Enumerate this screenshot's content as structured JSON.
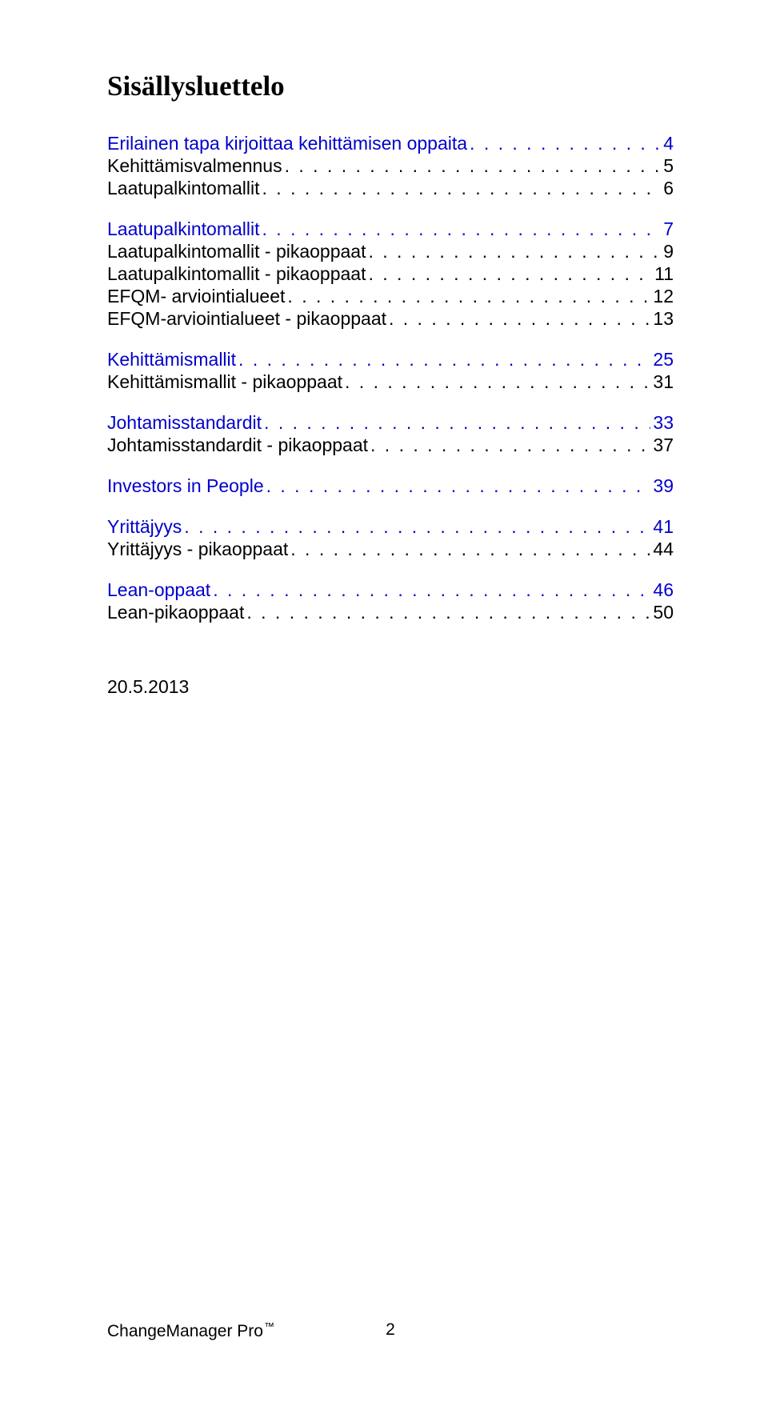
{
  "title": "Sisällysluettelo",
  "groups": [
    {
      "rows": [
        {
          "label": "Erilainen tapa kirjoittaa kehittämisen oppaita",
          "page": "4",
          "color": "blue"
        },
        {
          "label": "Kehittämisvalmennus",
          "page": "5",
          "color": "black"
        },
        {
          "label": "Laatupalkintomallit",
          "page": "6",
          "color": "black"
        }
      ]
    },
    {
      "rows": [
        {
          "label": "Laatupalkintomallit",
          "page": "7",
          "color": "blue"
        },
        {
          "label": "Laatupalkintomallit - pikaoppaat",
          "page": "9",
          "color": "black"
        },
        {
          "label": "Laatupalkintomallit - pikaoppaat",
          "page": "11",
          "color": "black"
        },
        {
          "label": "EFQM- arviointialueet",
          "page": "12",
          "color": "black"
        },
        {
          "label": "EFQM-arviointialueet - pikaoppaat",
          "page": "13",
          "color": "black"
        }
      ]
    },
    {
      "rows": [
        {
          "label": "Kehittämismallit",
          "page": "25",
          "color": "blue"
        },
        {
          "label": "Kehittämismallit - pikaoppaat",
          "page": "31",
          "color": "black"
        }
      ]
    },
    {
      "rows": [
        {
          "label": "Johtamisstandardit",
          "page": "33",
          "color": "blue"
        },
        {
          "label": "Johtamisstandardit - pikaoppaat",
          "page": "37",
          "color": "black"
        }
      ]
    },
    {
      "rows": [
        {
          "label": "Investors in People",
          "page": "39",
          "color": "blue"
        }
      ]
    },
    {
      "rows": [
        {
          "label": "Yrittäjyys",
          "page": "41",
          "color": "blue"
        },
        {
          "label": "Yrittäjyys - pikaoppaat",
          "page": "44",
          "color": "black"
        }
      ]
    },
    {
      "rows": [
        {
          "label": "Lean-oppaat",
          "page": "46",
          "color": "blue"
        },
        {
          "label": "Lean-pikaoppaat",
          "page": "50",
          "color": "black"
        }
      ]
    }
  ],
  "date": "20.5.2013",
  "footer": {
    "brand": "ChangeManager Pro",
    "tm": "™",
    "pagenum": "2"
  },
  "dot_fill": ". . . . . . . . . . . . . . . . . . . . . . . . . . . . . . . . . . . . . . . . . . . . . . . . . . . . . . . . . . . . . . . . . . . . . . . . . . . . . . . . . . . . . . . . . . . . . . . . . . . . . . . . . . . . . . . . . . . . . . . . . . . . . . . . . . . . . . . . . . . . . . . . . . . . . . . . . . . . . . . . . . . . . . . . . . . . . . . . . . . . . . . . . . . . . ."
}
